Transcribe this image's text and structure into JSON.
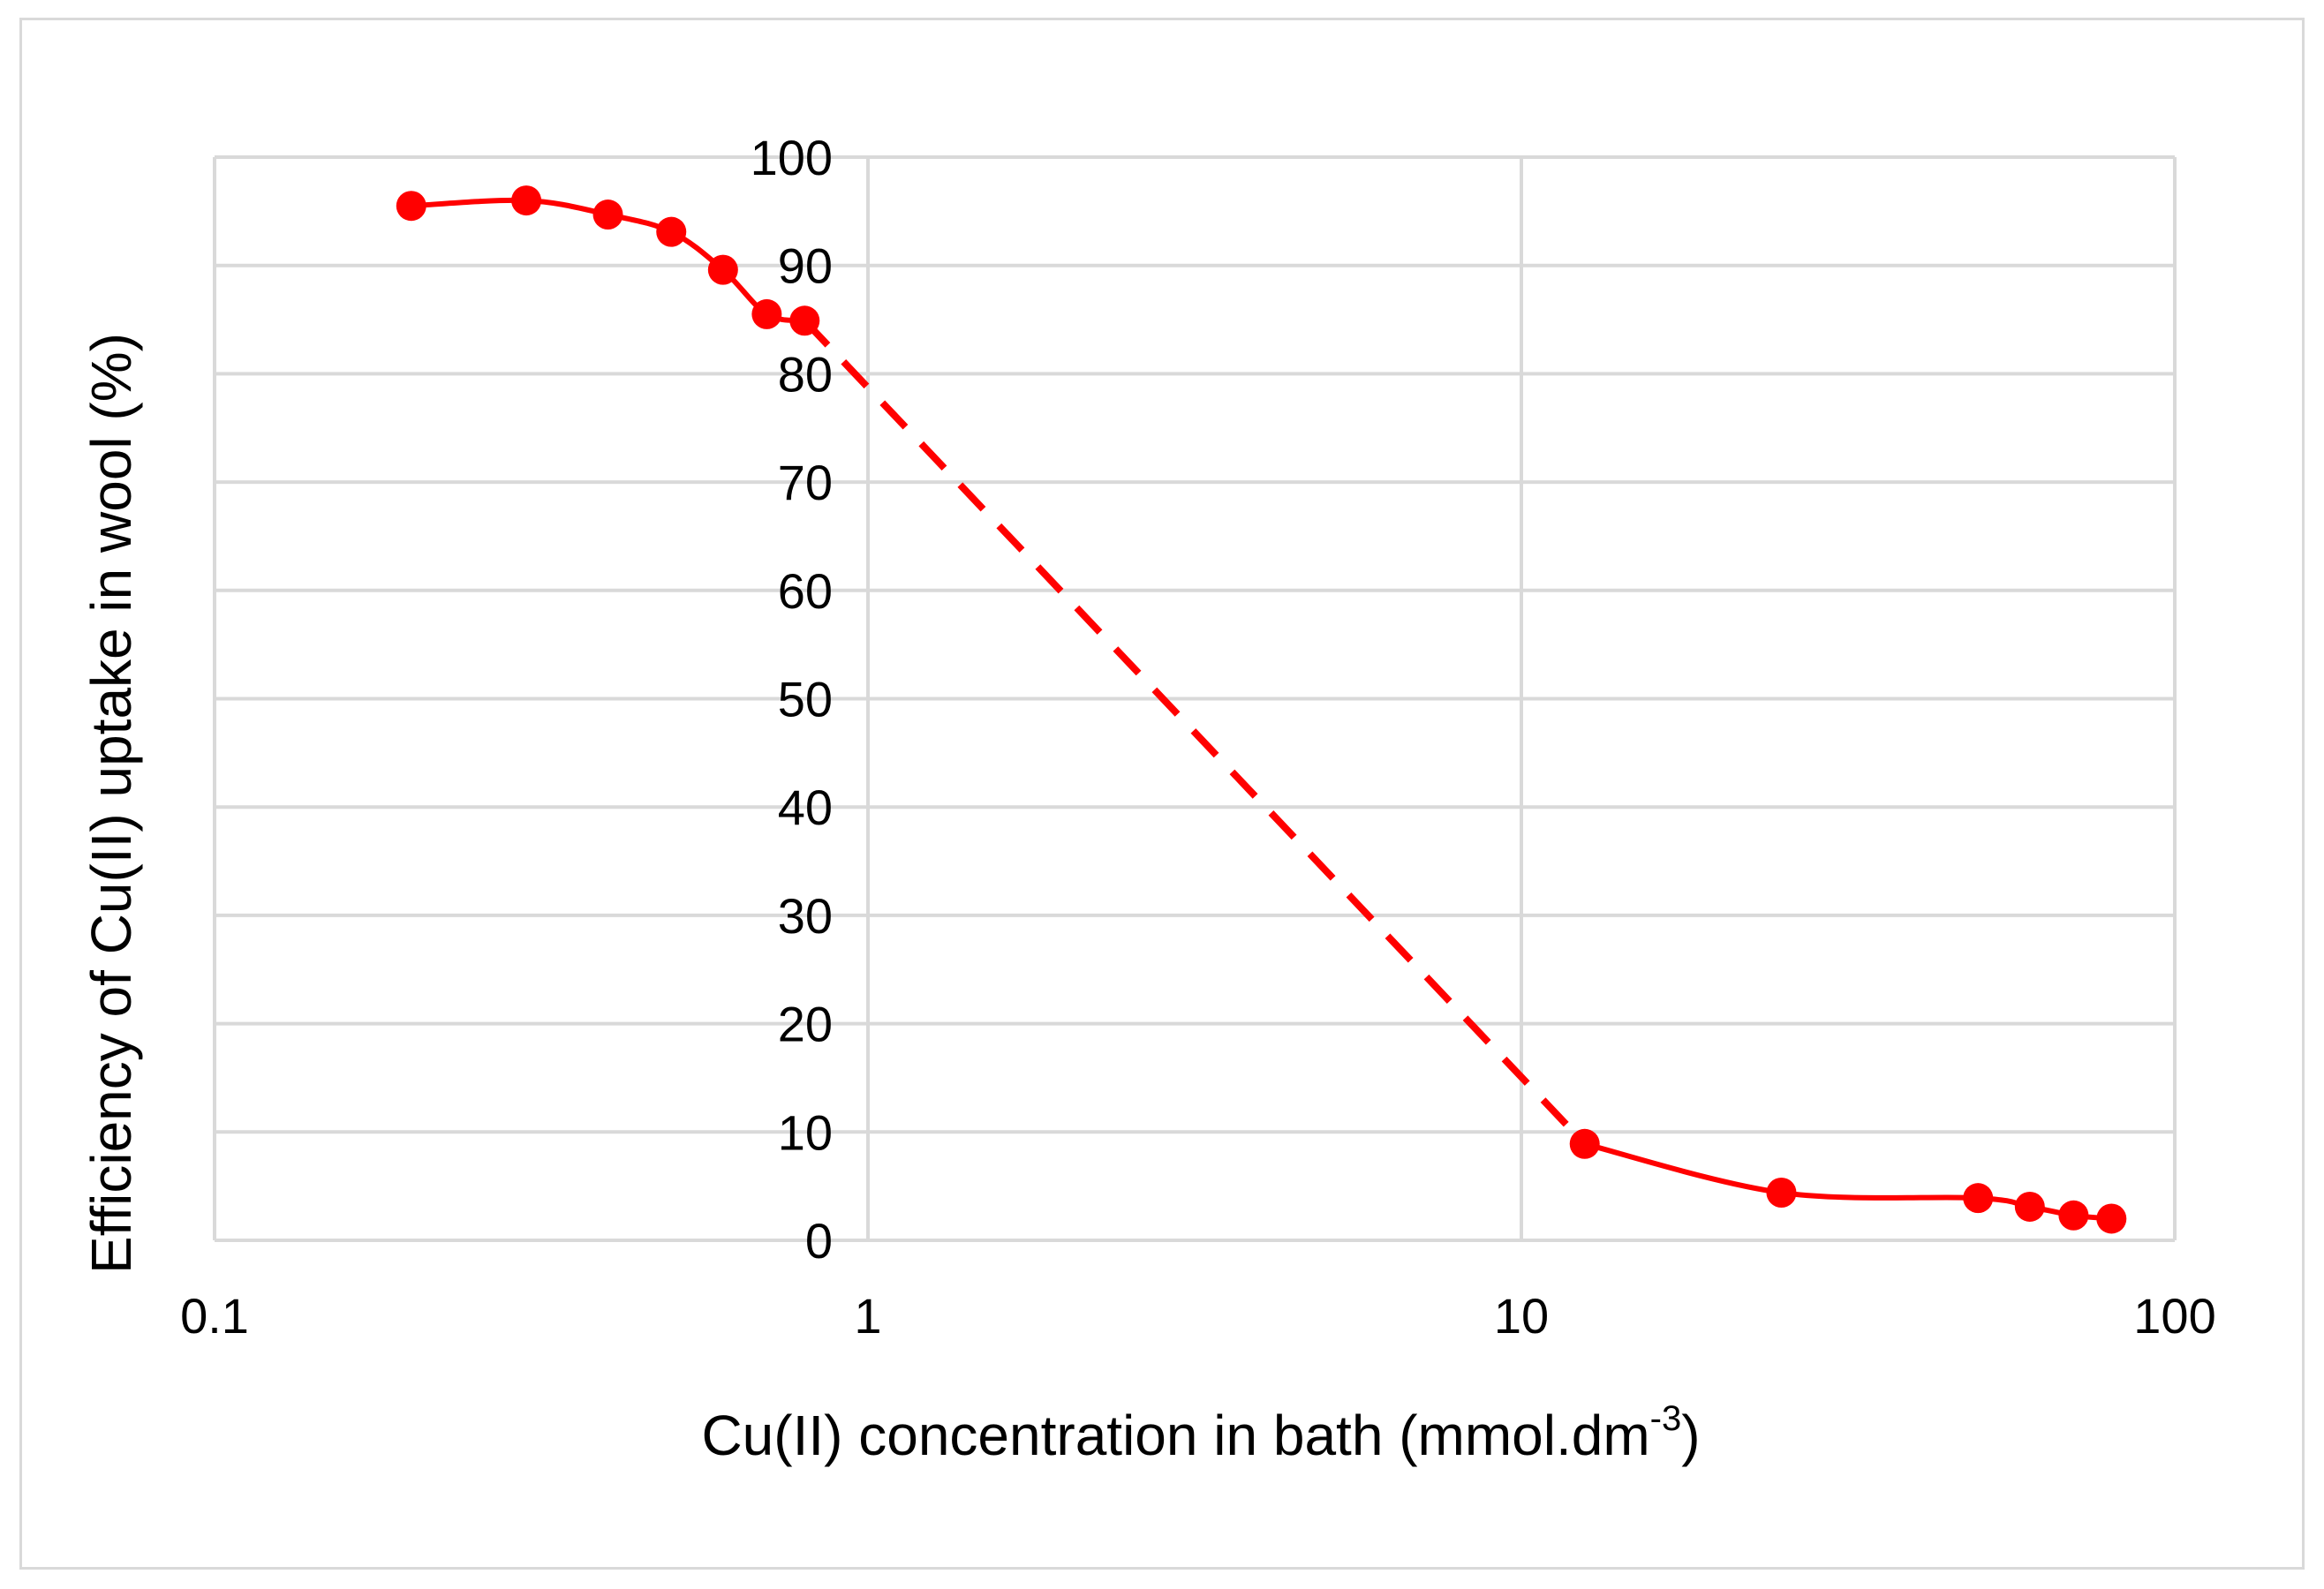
{
  "chart_data": {
    "type": "scatter",
    "title": "",
    "xlabel": "Cu(II) concentration in bath (mmol.dm",
    "xlabel_superscript": "-3",
    "xlabel_suffix": ")",
    "ylabel": "Efficiency of Cu(II) uptake in wool (%)",
    "x_scale": "log",
    "xlim": [
      0.1,
      100
    ],
    "ylim": [
      0,
      100
    ],
    "x_ticks": [
      "0.1",
      "1",
      "10",
      "100"
    ],
    "y_ticks": [
      "0",
      "10",
      "20",
      "30",
      "40",
      "50",
      "60",
      "70",
      "80",
      "90",
      "100"
    ],
    "grid": true,
    "legend": "none",
    "series": [
      {
        "marker": "circle",
        "line": "smooth",
        "x": [
          0.2,
          0.3,
          0.4,
          0.5,
          0.6,
          0.7,
          0.8,
          12.5,
          25,
          50,
          60,
          70,
          80
        ],
        "y": [
          95.5,
          96,
          94.7,
          93.1,
          89.6,
          85.5,
          84.9,
          8.9,
          4.4,
          3.9,
          3.1,
          2.3,
          2.0
        ]
      }
    ],
    "dashed_segment": {
      "x": [
        0.8,
        12.5
      ],
      "y": [
        84.9,
        8.9
      ]
    },
    "colors": {
      "series": "#ff0000",
      "grid": "#d9d9d9",
      "frame": "#d9d9d9"
    }
  }
}
